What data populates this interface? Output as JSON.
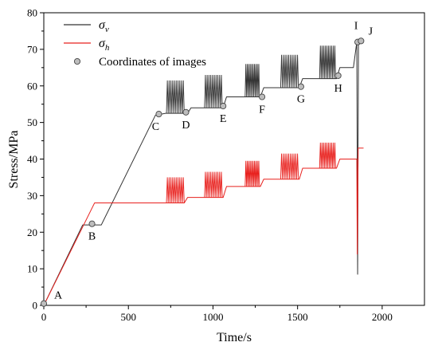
{
  "chart_data": {
    "type": "line",
    "xlabel": "Time/s",
    "ylabel": "Stress/MPa",
    "xlim": [
      0,
      2250
    ],
    "ylim": [
      0,
      80
    ],
    "xticks": [
      0,
      500,
      1000,
      1500,
      2000
    ],
    "yticks": [
      0,
      10,
      20,
      30,
      40,
      50,
      60,
      70,
      80
    ],
    "grid": false,
    "legend_position": "top-left",
    "legend": [
      {
        "symbol": "σ",
        "subscript": "v",
        "color": "#333333",
        "kind": "line"
      },
      {
        "symbol": "σ",
        "subscript": "h",
        "color": "#e8201d",
        "kind": "line"
      },
      {
        "text": "Coordinates of images",
        "kind": "marker"
      }
    ],
    "series": [
      {
        "key": "sv",
        "color": "#333333",
        "points": [
          [
            0,
            0
          ],
          [
            230,
            22
          ],
          [
            340,
            22
          ],
          [
            660,
            52
          ],
          [
            720,
            52.5
          ],
          [
            850,
            52.5
          ],
          [
            870,
            54
          ],
          [
            940,
            54
          ],
          [
            1060,
            54
          ],
          [
            1080,
            57
          ],
          [
            1180,
            57
          ],
          [
            1280,
            57
          ],
          [
            1300,
            59.5
          ],
          [
            1390,
            59.5
          ],
          [
            1510,
            59.5
          ],
          [
            1530,
            62
          ],
          [
            1620,
            62
          ],
          [
            1730,
            62
          ],
          [
            1750,
            65
          ],
          [
            1830,
            65
          ],
          [
            1850,
            72
          ],
          [
            1855,
            8.5
          ],
          [
            1860,
            72
          ],
          [
            1880,
            72
          ]
        ],
        "oscillations": [
          {
            "x0": 725,
            "x1": 830,
            "min": 52.5,
            "max": 61.5,
            "cycles": 10
          },
          {
            "x0": 950,
            "x1": 1055,
            "min": 54,
            "max": 63,
            "cycles": 10
          },
          {
            "x0": 1190,
            "x1": 1275,
            "min": 57,
            "max": 66,
            "cycles": 10
          },
          {
            "x0": 1400,
            "x1": 1505,
            "min": 59.5,
            "max": 68.5,
            "cycles": 10
          },
          {
            "x0": 1630,
            "x1": 1725,
            "min": 62,
            "max": 71,
            "cycles": 10
          }
        ]
      },
      {
        "key": "sh",
        "color": "#e8201d",
        "points": [
          [
            0,
            0
          ],
          [
            300,
            28
          ],
          [
            720,
            28
          ],
          [
            830,
            28
          ],
          [
            850,
            29.5
          ],
          [
            950,
            29.5
          ],
          [
            1060,
            29.5
          ],
          [
            1080,
            32.5
          ],
          [
            1180,
            32.5
          ],
          [
            1280,
            32.5
          ],
          [
            1300,
            34.5
          ],
          [
            1390,
            34.5
          ],
          [
            1510,
            34.5
          ],
          [
            1530,
            37.5
          ],
          [
            1620,
            37.5
          ],
          [
            1730,
            37.5
          ],
          [
            1750,
            40
          ],
          [
            1840,
            40
          ],
          [
            1850,
            40
          ],
          [
            1853,
            14
          ],
          [
            1858,
            43
          ],
          [
            1890,
            43
          ]
        ],
        "oscillations": [
          {
            "x0": 725,
            "x1": 830,
            "min": 28,
            "max": 35,
            "cycles": 10
          },
          {
            "x0": 950,
            "x1": 1055,
            "min": 29.5,
            "max": 36.5,
            "cycles": 10
          },
          {
            "x0": 1190,
            "x1": 1275,
            "min": 32.5,
            "max": 39.5,
            "cycles": 10
          },
          {
            "x0": 1400,
            "x1": 1505,
            "min": 34.5,
            "max": 41.5,
            "cycles": 10
          },
          {
            "x0": 1630,
            "x1": 1725,
            "min": 37.5,
            "max": 44.5,
            "cycles": 10
          }
        ]
      }
    ],
    "markers": [
      {
        "label": "A",
        "x": 0,
        "y": 0.5
      },
      {
        "label": "B",
        "x": 285,
        "y": 22.3
      },
      {
        "label": "C",
        "x": 680,
        "y": 52.3
      },
      {
        "label": "D",
        "x": 840,
        "y": 52.8
      },
      {
        "label": "E",
        "x": 1060,
        "y": 54.5
      },
      {
        "label": "F",
        "x": 1290,
        "y": 57
      },
      {
        "label": "G",
        "x": 1520,
        "y": 59.8
      },
      {
        "label": "H",
        "x": 1740,
        "y": 62.8
      },
      {
        "label": "I",
        "x": 1855,
        "y": 72
      },
      {
        "label": "J",
        "x": 1875,
        "y": 72.3
      }
    ]
  }
}
